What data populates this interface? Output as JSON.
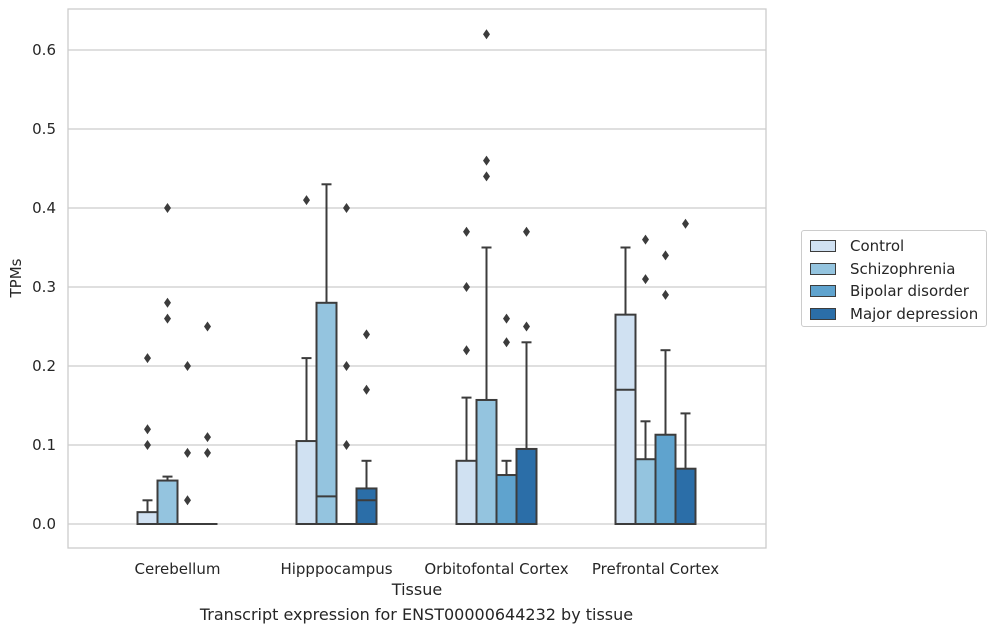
{
  "caption": "Transcript expression for ENST00000644232 by tissue",
  "chart_data": {
    "type": "box",
    "title": "",
    "xlabel": "Tissue",
    "ylabel": "TPMs",
    "ylim": [
      -0.03,
      0.65
    ],
    "yticks": [
      0.0,
      0.1,
      0.2,
      0.3,
      0.4,
      0.5,
      0.6
    ],
    "ytick_labels": [
      "0.0",
      "0.1",
      "0.2",
      "0.3",
      "0.4",
      "0.5",
      "0.6"
    ],
    "grid": "horizontal",
    "legend_position": "right",
    "categories": [
      "Cerebellum",
      "Hipppocampus",
      "Orbitofontal Cortex",
      "Prefrontal Cortex"
    ],
    "series": [
      {
        "name": "Control",
        "color": "#d0e1f2",
        "boxes": [
          {
            "q1": 0.0,
            "median": 0.0,
            "q3": 0.015,
            "whisker_low": 0.0,
            "whisker_high": 0.03,
            "outliers": [
              0.1,
              0.12,
              0.21
            ]
          },
          {
            "q1": 0.0,
            "median": 0.0,
            "q3": 0.105,
            "whisker_low": 0.0,
            "whisker_high": 0.21,
            "outliers": [
              0.41
            ]
          },
          {
            "q1": 0.0,
            "median": 0.0,
            "q3": 0.08,
            "whisker_low": 0.0,
            "whisker_high": 0.16,
            "outliers": [
              0.22,
              0.3,
              0.37
            ]
          },
          {
            "q1": 0.0,
            "median": 0.17,
            "q3": 0.265,
            "whisker_low": 0.0,
            "whisker_high": 0.35,
            "outliers": []
          }
        ]
      },
      {
        "name": "Schizophrenia",
        "color": "#94c4df",
        "boxes": [
          {
            "q1": 0.0,
            "median": 0.0,
            "q3": 0.055,
            "whisker_low": 0.0,
            "whisker_high": 0.06,
            "outliers": [
              0.26,
              0.28,
              0.4
            ]
          },
          {
            "q1": 0.0,
            "median": 0.035,
            "q3": 0.28,
            "whisker_low": 0.0,
            "whisker_high": 0.43,
            "outliers": []
          },
          {
            "q1": 0.0,
            "median": 0.0,
            "q3": 0.157,
            "whisker_low": 0.0,
            "whisker_high": 0.35,
            "outliers": [
              0.44,
              0.46,
              0.62
            ]
          },
          {
            "q1": 0.0,
            "median": 0.0,
            "q3": 0.082,
            "whisker_low": 0.0,
            "whisker_high": 0.13,
            "outliers": [
              0.31,
              0.36
            ]
          }
        ]
      },
      {
        "name": "Bipolar disorder",
        "color": "#5fa3ce",
        "boxes": [
          {
            "q1": 0.0,
            "median": 0.0,
            "q3": 0.0,
            "whisker_low": 0.0,
            "whisker_high": 0.0,
            "outliers": [
              0.03,
              0.09,
              0.2
            ]
          },
          {
            "q1": 0.0,
            "median": 0.0,
            "q3": 0.0,
            "whisker_low": 0.0,
            "whisker_high": 0.0,
            "outliers": [
              0.1,
              0.2,
              0.4
            ]
          },
          {
            "q1": 0.0,
            "median": 0.0,
            "q3": 0.062,
            "whisker_low": 0.0,
            "whisker_high": 0.08,
            "outliers": [
              0.23,
              0.26
            ]
          },
          {
            "q1": 0.0,
            "median": 0.0,
            "q3": 0.113,
            "whisker_low": 0.0,
            "whisker_high": 0.22,
            "outliers": [
              0.29,
              0.34
            ]
          }
        ]
      },
      {
        "name": "Major depression",
        "color": "#2b6ea8",
        "boxes": [
          {
            "q1": 0.0,
            "median": 0.0,
            "q3": 0.0,
            "whisker_low": 0.0,
            "whisker_high": 0.0,
            "outliers": [
              0.09,
              0.11,
              0.25
            ]
          },
          {
            "q1": 0.0,
            "median": 0.03,
            "q3": 0.045,
            "whisker_low": 0.0,
            "whisker_high": 0.08,
            "outliers": [
              0.17,
              0.24
            ]
          },
          {
            "q1": 0.0,
            "median": 0.0,
            "q3": 0.095,
            "whisker_low": 0.0,
            "whisker_high": 0.23,
            "outliers": [
              0.25,
              0.37
            ]
          },
          {
            "q1": 0.0,
            "median": 0.0,
            "q3": 0.07,
            "whisker_low": 0.0,
            "whisker_high": 0.14,
            "outliers": [
              0.38
            ]
          }
        ]
      }
    ],
    "line_color": "#3c3c3c",
    "grid_color": "#cccccc",
    "frame_color": "#cccccc"
  }
}
